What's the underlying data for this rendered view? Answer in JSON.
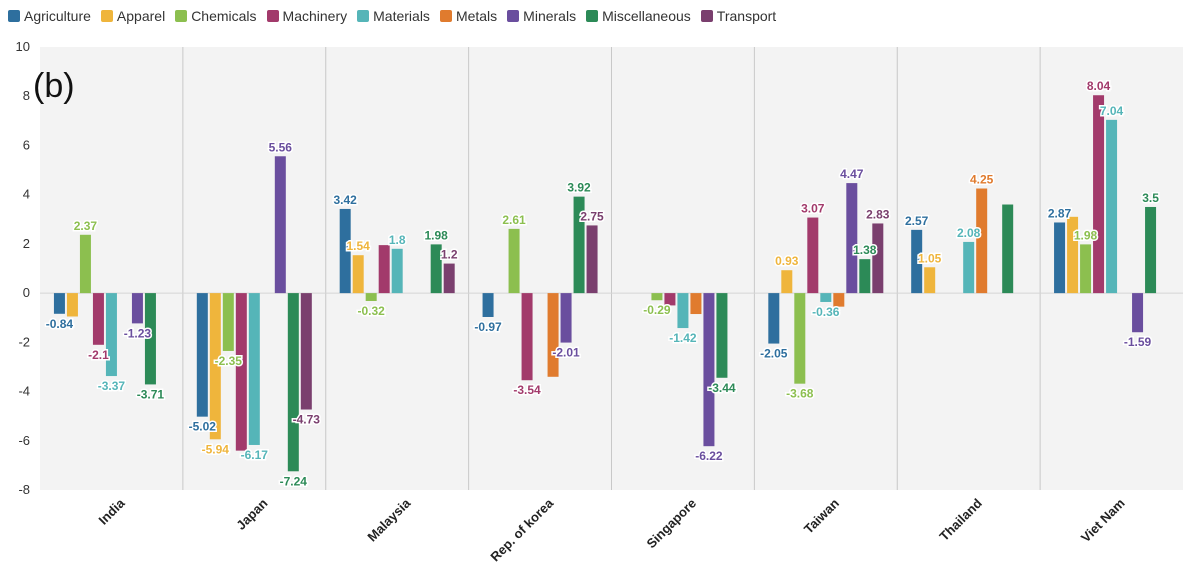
{
  "chart_data": {
    "type": "bar",
    "panel_label": "(b)",
    "categories": [
      "India",
      "Japan",
      "Malaysia",
      "Rep. of korea",
      "Singapore",
      "Taiwan",
      "Thailand",
      "Viet Nam"
    ],
    "ylim": [
      -8,
      10
    ],
    "yticks": [
      "-8",
      "-6",
      "-4",
      "-2",
      "0",
      "2",
      "4",
      "6",
      "8",
      "10"
    ],
    "grid": "vertical separators between categories",
    "legend_position": "top-left",
    "series": [
      {
        "name": "Agriculture",
        "color": "#2e6f9e",
        "values": [
          -0.84,
          -5.02,
          3.42,
          -0.97,
          null,
          -2.05,
          2.57,
          2.87
        ],
        "labels": [
          "-0.84",
          "-5.02",
          "3.42",
          "-0.97",
          "",
          "-2.05",
          "2.57",
          "2.87"
        ]
      },
      {
        "name": "Apparel",
        "color": "#efb53c",
        "values": [
          -0.95,
          -5.94,
          1.54,
          null,
          null,
          0.93,
          1.05,
          3.1
        ],
        "labels": [
          "",
          "-5.94",
          "1.54",
          "",
          "",
          "0.93",
          "1.05",
          ""
        ]
      },
      {
        "name": "Chemicals",
        "color": "#8cbf4f",
        "values": [
          2.37,
          -2.35,
          -0.32,
          2.61,
          -0.29,
          -3.68,
          null,
          1.98
        ],
        "labels": [
          "2.37",
          "-2.35",
          "-0.32",
          "2.61",
          "-0.29",
          "-3.68",
          "",
          "1.98"
        ]
      },
      {
        "name": "Machinery",
        "color": "#a23a6b",
        "values": [
          -2.1,
          -6.4,
          1.95,
          -3.54,
          -0.5,
          3.07,
          null,
          8.04
        ],
        "labels": [
          "-2.1",
          "",
          "",
          "-3.54",
          "",
          "3.07",
          "",
          "8.04"
        ]
      },
      {
        "name": "Materials",
        "color": "#55b5b8",
        "values": [
          -3.37,
          -6.17,
          1.8,
          null,
          -1.42,
          -0.36,
          2.08,
          7.04
        ],
        "labels": [
          "-3.37",
          "-6.17",
          "1.8",
          "",
          "-1.42",
          "-0.36",
          "2.08",
          "7.04"
        ]
      },
      {
        "name": "Metals",
        "color": "#e07b2e",
        "values": [
          null,
          null,
          null,
          -3.4,
          -0.85,
          -0.55,
          4.25,
          null
        ],
        "labels": [
          "",
          "",
          "",
          "",
          "",
          "",
          "4.25",
          ""
        ]
      },
      {
        "name": "Minerals",
        "color": "#6a4e9e",
        "values": [
          -1.23,
          5.56,
          null,
          -2.01,
          -6.22,
          4.47,
          null,
          -1.59
        ],
        "labels": [
          "-1.23",
          "5.56",
          "",
          "-2.01",
          "-6.22",
          "4.47",
          "",
          "-1.59"
        ]
      },
      {
        "name": "Miscellaneous",
        "color": "#2c8a57",
        "values": [
          -3.71,
          -7.24,
          1.98,
          3.92,
          -3.44,
          1.38,
          3.6,
          3.5
        ],
        "labels": [
          "-3.71",
          "-7.24",
          "1.98",
          "3.92",
          "-3.44",
          "1.38",
          "",
          "3.5"
        ]
      },
      {
        "name": "Transport",
        "color": "#7a3f6e",
        "values": [
          null,
          -4.73,
          1.2,
          2.75,
          null,
          2.83,
          null,
          null
        ],
        "labels": [
          "",
          "-4.73",
          "1.2",
          "2.75",
          "",
          "2.83",
          "",
          ""
        ]
      }
    ]
  }
}
